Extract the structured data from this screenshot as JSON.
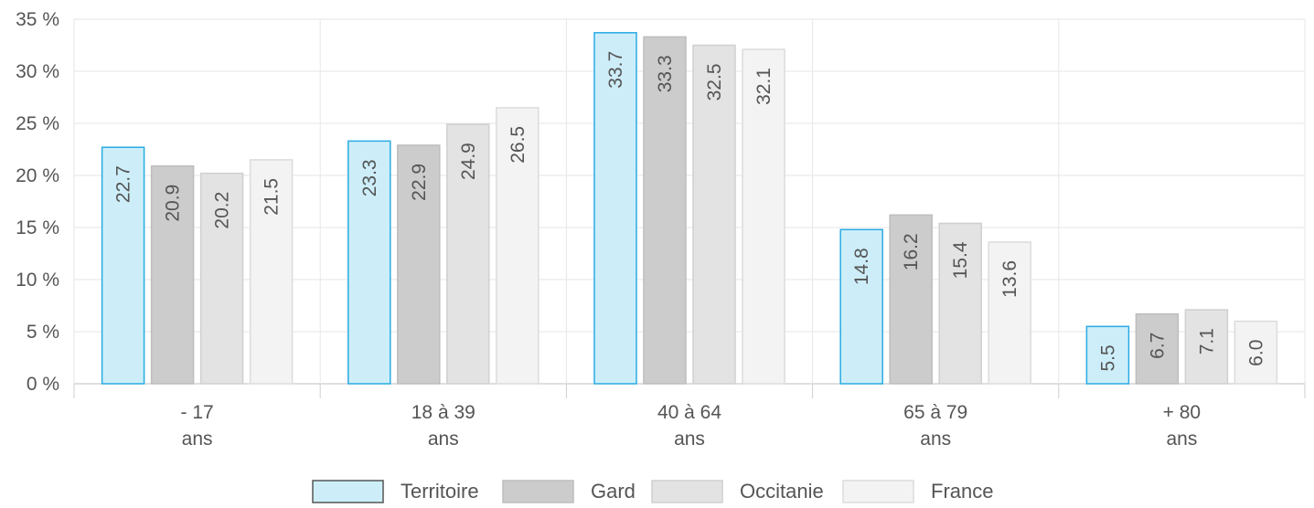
{
  "chart_data": {
    "type": "bar",
    "categories": [
      [
        "- 17",
        "ans"
      ],
      [
        "18 à 39",
        "ans"
      ],
      [
        "40 à 64",
        "ans"
      ],
      [
        "65 à 79",
        "ans"
      ],
      [
        "+ 80",
        "ans"
      ]
    ],
    "series": [
      {
        "name": "Territoire",
        "values": [
          22.7,
          23.3,
          33.7,
          14.8,
          5.5
        ],
        "fill": "#cdeef9",
        "stroke": "#29abe2"
      },
      {
        "name": "Gard",
        "values": [
          20.9,
          22.9,
          33.3,
          16.2,
          6.7
        ],
        "fill": "#cccccc",
        "stroke": "#bdbdbd"
      },
      {
        "name": "Occitanie",
        "values": [
          20.2,
          24.9,
          32.5,
          15.4,
          7.1
        ],
        "fill": "#e3e3e3",
        "stroke": "#d0d0d0"
      },
      {
        "name": "France",
        "values": [
          21.5,
          26.5,
          32.1,
          13.6,
          6.0
        ],
        "fill": "#f3f3f3",
        "stroke": "#dcdcdc"
      }
    ],
    "ylim": [
      0,
      35
    ],
    "yticks": [
      0,
      5,
      10,
      15,
      20,
      25,
      30,
      35
    ],
    "ytick_suffix": " %",
    "value_format_decimals": 1,
    "grid": true,
    "legend_position": "bottom-center"
  }
}
